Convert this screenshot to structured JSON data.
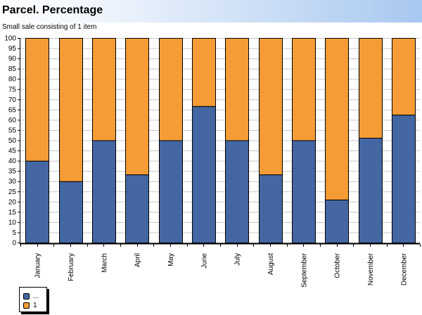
{
  "header": {
    "title": "Parcel. Percentage",
    "subtitle": "Small sale consisting of 1 item"
  },
  "chart_data": {
    "type": "bar",
    "stacked": true,
    "categories": [
      "January",
      "February",
      "March",
      "April",
      "May",
      "June",
      "July",
      "August",
      "September",
      "October",
      "November",
      "December"
    ],
    "series": [
      {
        "name": "...",
        "color": "#4466a3",
        "values": [
          40,
          30,
          50,
          33.3,
          50,
          66.7,
          50,
          33.3,
          50,
          21,
          51.2,
          62.5
        ]
      },
      {
        "name": "1",
        "color": "#f59c36",
        "values": [
          60,
          70,
          50,
          66.7,
          50,
          33.3,
          50,
          66.7,
          50,
          79,
          48.8,
          37.5
        ]
      }
    ],
    "ylim": [
      0,
      100
    ],
    "yticks": [
      0,
      5,
      10,
      15,
      20,
      25,
      30,
      35,
      40,
      45,
      50,
      55,
      60,
      65,
      70,
      75,
      80,
      85,
      90,
      95,
      100
    ],
    "grid": true,
    "legend": "bottom-left"
  }
}
